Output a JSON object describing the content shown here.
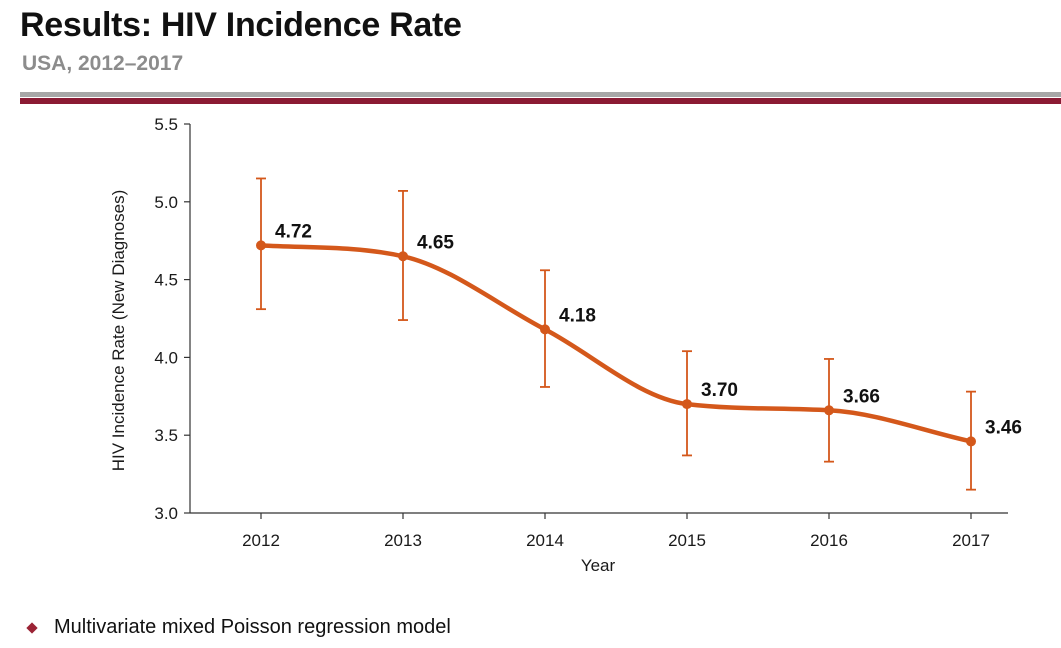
{
  "header": {
    "title": "Results: HIV Incidence Rate",
    "subtitle": "USA, 2012–2017"
  },
  "colors": {
    "series": "#d4581b",
    "axis": "#333333",
    "rule_grey": "#a7a7a7",
    "rule_red": "#8b1a33",
    "bullet": "#9b2335"
  },
  "chart_data": {
    "type": "line",
    "title": "",
    "xlabel": "Year",
    "ylabel": "HIV Incidence Rate (New Diagnoses)",
    "ylim": [
      3.0,
      5.5
    ],
    "yticks": [
      "3.0",
      "3.5",
      "4.0",
      "4.5",
      "5.0",
      "5.5"
    ],
    "categories": [
      "2012",
      "2013",
      "2014",
      "2015",
      "2016",
      "2017"
    ],
    "series": [
      {
        "values": [
          4.72,
          4.65,
          4.18,
          3.7,
          3.66,
          3.46
        ],
        "labels": [
          "4.72",
          "4.65",
          "4.18",
          "3.70",
          "3.66",
          "3.46"
        ],
        "error_upper": [
          5.15,
          5.07,
          4.56,
          4.04,
          3.99,
          3.78
        ],
        "error_lower": [
          4.31,
          4.24,
          3.81,
          3.37,
          3.33,
          3.15
        ]
      }
    ],
    "grid": false,
    "smooth": true
  },
  "footnotes": [
    "Multivariate mixed Poisson regression model"
  ]
}
